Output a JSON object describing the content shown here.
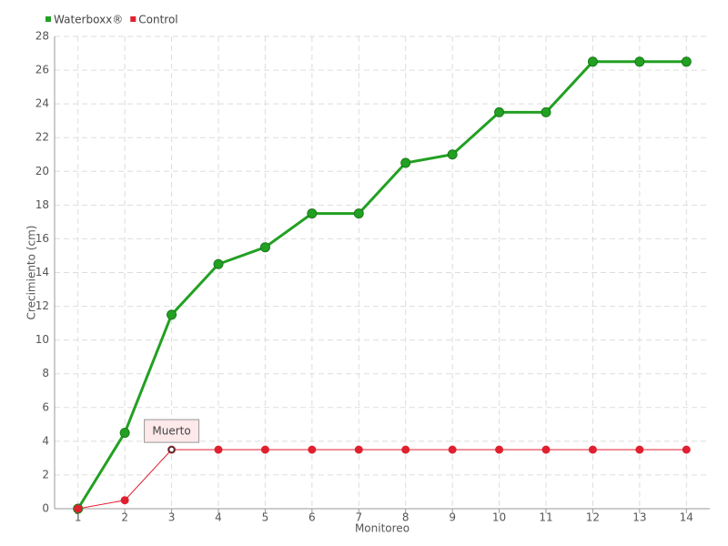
{
  "chart_data": {
    "type": "line",
    "x_label": "Monitoreo",
    "y_label": "Crecimiento (cm)",
    "categories": [
      "1",
      "2",
      "3",
      "4",
      "5",
      "6",
      "7",
      "8",
      "9",
      "10",
      "11",
      "12",
      "13",
      "14"
    ],
    "series": [
      {
        "name": "Waterboxx®",
        "color": "#22a022",
        "values": [
          0,
          4.5,
          11.5,
          14.5,
          15.5,
          17.5,
          17.5,
          20.5,
          21,
          23.5,
          23.5,
          26.5,
          26.5,
          26.5
        ]
      },
      {
        "name": "Control",
        "color": "#e0202e",
        "values": [
          0,
          0.5,
          3.5,
          3.5,
          3.5,
          3.5,
          3.5,
          3.5,
          3.5,
          3.5,
          3.5,
          3.5,
          3.5,
          3.5
        ]
      }
    ],
    "annotations": [
      {
        "text": "Muerto",
        "category": "3"
      }
    ],
    "ylim": [
      0,
      28
    ],
    "yticks": [
      0,
      2,
      4,
      6,
      8,
      10,
      12,
      14,
      16,
      18,
      20,
      22,
      24,
      26,
      28
    ],
    "grid": true,
    "legend": "top-left"
  }
}
